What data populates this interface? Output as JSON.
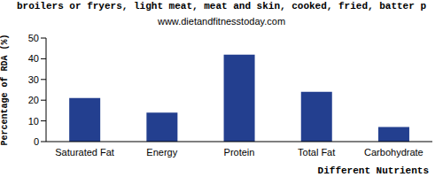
{
  "chart_data": {
    "type": "bar",
    "title": "broilers or fryers, light meat, meat and skin, cooked, fried, batter p",
    "subtitle": "www.dietandfitnesstoday.com",
    "x_label": "Different Nutrients",
    "y_label": "Percentage of RDA (%)",
    "categories": [
      "Saturated Fat",
      "Energy",
      "Protein",
      "Total Fat",
      "Carbohydrate"
    ],
    "values": [
      21,
      14,
      42,
      24,
      7
    ],
    "color": "#233f8f",
    "ylim": [
      0,
      50
    ],
    "yticks": [
      0,
      10,
      20,
      30,
      40,
      50
    ],
    "grid": false
  }
}
